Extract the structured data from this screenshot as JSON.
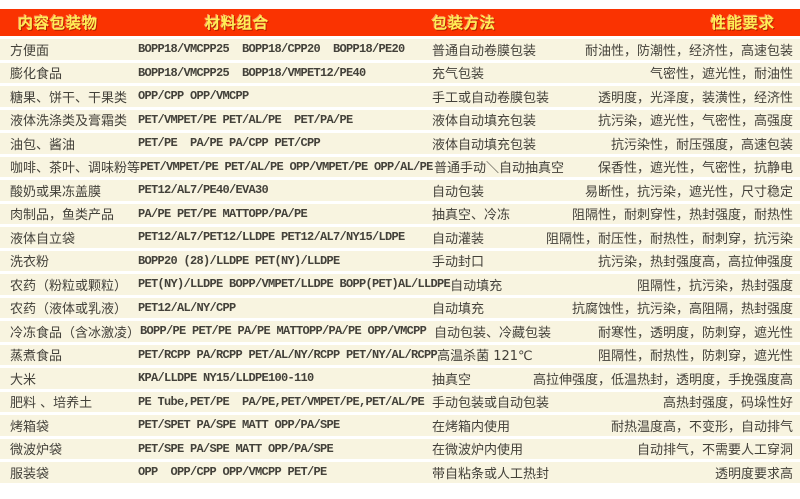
{
  "header": {
    "columns": [
      "内容包装物",
      "材料组合",
      "包装方法",
      "性能要求"
    ]
  },
  "colors": {
    "header_bg": "#fa3301",
    "header_text": "#ffee55",
    "row_bg": "#f8f4e0",
    "body_text": "#43413a"
  },
  "rows": [
    {
      "item": "方便面",
      "materials": "BOPP18/VMCPP25  BOPP18/CPP20  BOPP18/PE20",
      "method": "普通自动卷膜包装",
      "requirements": "耐油性，防潮性，经济性，高速包装"
    },
    {
      "item": "膨化食品",
      "materials": "BOPP18/VMCPP25  BOPP18/VMPET12/PE40",
      "method": "充气包装",
      "requirements": "气密性，遮光性，耐油性"
    },
    {
      "item": "糖果、饼干、干果类",
      "materials": "OPP/CPP OPP/VMCPP",
      "method": "手工或自动卷膜包装",
      "requirements": "透明度，光泽度，装潢性，经济性"
    },
    {
      "item": "液体洗涤类及膏霜类",
      "materials": "PET/VMPET/PE PET/AL/PE  PET/PA/PE",
      "method": "液体自动填充包装",
      "requirements": "抗污染，遮光性，气密性，高强度"
    },
    {
      "item": "油包、酱油",
      "materials": "PET/PE  PA/PE PA/CPP PET/CPP",
      "method": "液体自动填充包装",
      "requirements": "抗污染性，耐压强度，高速包装"
    },
    {
      "item": "咖啡、茶叶、调味粉等",
      "materials": "PET/VMPET/PE PET/AL/PE OPP/VMPET/PE OPP/AL/PE",
      "method": "普通手动＼自动抽真空",
      "requirements": "保香性，遮光性，气密性，抗静电"
    },
    {
      "item": "酸奶或果冻盖膜",
      "materials": "PET12/AL7/PE40/EVA30",
      "method": "自动包装",
      "requirements": "易断性，抗污染，遮光性，尺寸稳定"
    },
    {
      "item": "肉制品，鱼类产品",
      "materials": "PA/PE PET/PE MATTOPP/PA/PE",
      "method": "抽真空、冷冻",
      "requirements": "阻隔性，耐刺穿性，热封强度，耐热性"
    },
    {
      "item": "液体自立袋",
      "materials": "PET12/AL7/PET12/LLDPE PET12/AL7/NY15/LDPE",
      "method": "自动灌装",
      "requirements": "阻隔性，耐压性，耐热性，耐刺穿，抗污染"
    },
    {
      "item": "洗衣粉",
      "materials": "BOPP20 (28)/LLDPE PET(NY)/LLDPE",
      "method": "手动封口",
      "requirements": "抗污染，热封强度高，高拉伸强度"
    },
    {
      "item": "农药（粉粒或颗粒）",
      "materials": "PET(NY)/LLDPE BOPP/VMPET/LLDPE BOPP(PET)AL/LLDPE",
      "method": "自动填充",
      "requirements": "阻隔性，抗污染，热封强度"
    },
    {
      "item": "农药（液体或乳液）",
      "materials": "PET12/AL/NY/CPP",
      "method": "自动填充",
      "requirements": "抗腐蚀性，抗污染，高阻隔，热封强度"
    },
    {
      "item": "冷冻食品（含冰激凌）",
      "materials": "BOPP/PE PET/PE PA/PE MATTOPP/PA/PE OPP/VMCPP",
      "method": "自动包装、冷藏包装",
      "requirements": "耐寒性，透明度，防刺穿，遮光性"
    },
    {
      "item": "蒸煮食品",
      "materials": "PET/RCPP PA/RCPP PET/AL/NY/RCPP PET/NY/AL/RCPP",
      "method": "高温杀菌 121℃",
      "requirements": "阻隔性，耐热性，防刺穿，遮光性"
    },
    {
      "item": "大米",
      "materials": "KPA/LLDPE NY15/LLDPE100-110",
      "method": "抽真空",
      "requirements": "高拉伸强度，低温热封，透明度，手挽强度高"
    },
    {
      "item": "肥料 、培养土",
      "materials": "PE Tube,PET/PE  PA/PE,PET/VMPET/PE,PET/AL/PE",
      "method": "手动包装或自动包装",
      "requirements": "高热封强度，码垛性好"
    },
    {
      "item": "烤箱袋",
      "materials": "PET/SPET PA/SPE MATT OPP/PA/SPE",
      "method": "在烤箱内使用",
      "requirements": "耐热温度高，不变形，自动排气"
    },
    {
      "item": "微波炉袋",
      "materials": "PET/SPE PA/SPE MATT OPP/PA/SPE",
      "method": "在微波炉内使用",
      "requirements": "自动排气，不需要人工穿洞"
    },
    {
      "item": "服装袋",
      "materials": "OPP  OPP/CPP OPP/VMCPP PET/PE",
      "method": "带自粘条或人工热封",
      "requirements": "透明度要求高"
    }
  ]
}
